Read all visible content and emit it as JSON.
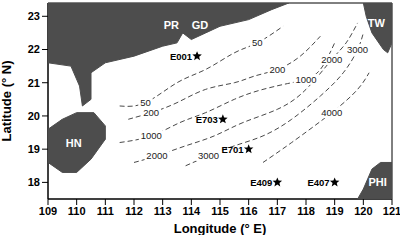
{
  "chart_data": {
    "type": "scatter",
    "xlabel": "Longitude (° E)",
    "ylabel": "Latitude (° N)",
    "xlim": [
      109,
      121
    ],
    "ylim": [
      17.5,
      23.4
    ],
    "xticks": [
      109,
      110,
      111,
      112,
      113,
      114,
      115,
      116,
      117,
      118,
      119,
      120,
      121
    ],
    "yticks": [
      18,
      19,
      20,
      21,
      22,
      23
    ],
    "grid": false,
    "land": {
      "color": "#4d4d4d",
      "shapes": [
        {
          "x": [
            109,
            109,
            109.8,
            110.1,
            110.2,
            110.5,
            110.5,
            111,
            112,
            113,
            113.5,
            113.7,
            114,
            114.5,
            115,
            116,
            116.8,
            117.4
          ],
          "y": [
            23.4,
            21.6,
            21.5,
            20.9,
            20.3,
            20.5,
            21.3,
            21.6,
            21.8,
            22.1,
            22.2,
            22.5,
            22.3,
            22.5,
            22.7,
            22.9,
            23.2,
            23.4
          ]
        },
        {
          "x": [
            109,
            109.5,
            110,
            110.5,
            111,
            111,
            110.6,
            110,
            109.5,
            109
          ],
          "y": [
            18.6,
            18.3,
            18.3,
            18.7,
            19.3,
            19.7,
            20.1,
            20.1,
            19.9,
            19.6
          ]
        },
        {
          "x": [
            120,
            120.1,
            120.3,
            120.7,
            120.85,
            121,
            121
          ],
          "y": [
            23.4,
            23.0,
            22.5,
            22.0,
            21.9,
            22.2,
            23.4
          ]
        },
        {
          "x": [
            119.8,
            120.0,
            120.3,
            120.6,
            121,
            121
          ],
          "y": [
            17.5,
            17.8,
            18.4,
            18.6,
            18.6,
            17.5
          ]
        }
      ]
    },
    "places": {
      "labels": [
        "PR",
        "GD",
        "HN",
        "TW",
        "PHI"
      ],
      "x": [
        113.3,
        114.3,
        109.9,
        120.45,
        120.5
      ],
      "y": [
        22.75,
        22.75,
        19.2,
        22.8,
        18.0
      ]
    },
    "contours": {
      "line_style": "dashed",
      "color": "#333333",
      "lines": [
        {
          "depth": 50,
          "x": [
            111.5,
            112.4,
            113.5,
            114.5,
            115.5,
            116.3,
            117.2
          ],
          "y": [
            20.3,
            20.4,
            21.0,
            21.4,
            21.9,
            22.2,
            22.7
          ],
          "label_x": [
            112.4,
            116.3
          ],
          "label_y": [
            20.4,
            22.2
          ]
        },
        {
          "depth": 200,
          "x": [
            111.8,
            112.6,
            113.5,
            114.5,
            115.5,
            116.2,
            117.0,
            117.8,
            118.5
          ],
          "y": [
            19.9,
            20.1,
            20.4,
            20.8,
            21.0,
            21.2,
            21.4,
            21.8,
            22.4
          ],
          "label_x": [
            112.6,
            117.0
          ],
          "label_y": [
            20.1,
            21.4
          ]
        },
        {
          "depth": 1000,
          "x": [
            111.5,
            112.6,
            113.6,
            114.5,
            115.5,
            116.5,
            117.5,
            118.0,
            118.5,
            119.0
          ],
          "y": [
            19.2,
            19.4,
            19.8,
            20.1,
            20.5,
            20.8,
            21.0,
            21.1,
            21.4,
            22.2
          ],
          "label_x": [
            112.6,
            118.0
          ],
          "label_y": [
            19.4,
            21.1
          ]
        },
        {
          "depth": 2000,
          "x": [
            112.0,
            112.8,
            113.8,
            114.8,
            115.8,
            117.0,
            118.0,
            118.9,
            119.4,
            119.8
          ],
          "y": [
            18.6,
            18.8,
            19.1,
            19.4,
            19.8,
            20.2,
            20.8,
            21.7,
            22.2,
            22.8
          ],
          "label_x": [
            112.8,
            118.9
          ],
          "label_y": [
            18.8,
            21.7
          ]
        },
        {
          "depth": 3000,
          "x": [
            113.8,
            114.6,
            115.5,
            116.5,
            117.5,
            118.5,
            119.3,
            119.8,
            120.0
          ],
          "y": [
            18.5,
            18.8,
            19.1,
            19.4,
            19.9,
            20.6,
            21.3,
            22.0,
            22.5
          ],
          "label_x": [
            114.6,
            119.8
          ],
          "label_y": [
            18.8,
            22.0
          ]
        },
        {
          "depth": 4000,
          "x": [
            116.5,
            117.5,
            118.9,
            119.8,
            120.2
          ],
          "y": [
            18.6,
            19.2,
            20.1,
            20.8,
            21.3
          ],
          "label_x": [
            118.9
          ],
          "label_y": [
            20.1
          ]
        }
      ]
    },
    "stations": {
      "marker": "star",
      "color": "#000000",
      "labels": [
        "E001",
        "E703",
        "E701",
        "E409",
        "E407"
      ],
      "x": [
        114.2,
        115.1,
        116.0,
        117.0,
        119.0
      ],
      "y": [
        21.8,
        19.9,
        19.0,
        18.0,
        18.0
      ]
    }
  }
}
